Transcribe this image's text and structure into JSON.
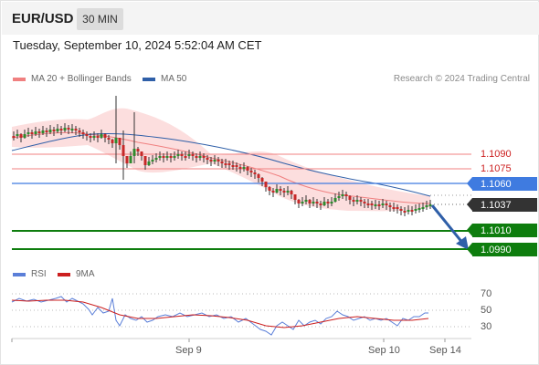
{
  "header": {
    "symbol": "EUR/USD",
    "timeframe": "30 MIN"
  },
  "datetime": "Tuesday, September 10, 2024 5:52:04 AM CET",
  "legend": {
    "ma20": {
      "label": "MA 20 + Bollinger Bands",
      "color": "#f08080"
    },
    "ma50": {
      "label": "MA 50",
      "color": "#2f5fa8"
    }
  },
  "copyright": "Research © 2024 Trading Central",
  "levels": {
    "resistance_1": "1.1090",
    "resistance_2": "1.1075",
    "pivot": "1.1060",
    "last_price": "1.1037",
    "support_1": "1.1010",
    "support_2": "1.0990"
  },
  "rsi": {
    "legend_rsi": "RSI",
    "legend_ma": "9MA",
    "rsi_color": "#5b7fd8",
    "ma_color": "#cc1f1f",
    "levels": [
      "70",
      "50",
      "30"
    ]
  },
  "xaxis": {
    "labels": [
      "Sep 9",
      "Sep 10",
      "Sep 14"
    ]
  },
  "colors": {
    "bull": "#2e8b2e",
    "bear": "#c62828",
    "support": "#0e7d0e",
    "pivot": "#3f7be0",
    "forecast_arrow": "#2f5fa8"
  }
}
